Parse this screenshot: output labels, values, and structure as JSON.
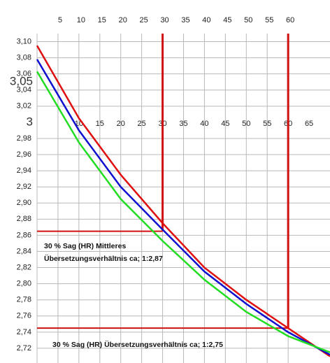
{
  "chart_data": {
    "type": "line",
    "x": [
      0,
      10,
      20,
      30,
      40,
      50,
      60,
      70
    ],
    "series": [
      {
        "color": "#e01010",
        "values": [
          3.095,
          3.005,
          2.935,
          2.875,
          2.82,
          2.78,
          2.745,
          2.71
        ]
      },
      {
        "color": "#1010d0",
        "values": [
          3.078,
          2.99,
          2.92,
          2.867,
          2.815,
          2.775,
          2.74,
          2.712
        ]
      },
      {
        "color": "#22dd22",
        "values": [
          3.063,
          2.975,
          2.905,
          2.853,
          2.805,
          2.765,
          2.735,
          2.715
        ]
      }
    ],
    "xlim": [
      0,
      70
    ],
    "ylim": [
      2.7,
      3.11
    ],
    "xticks": [
      5,
      10,
      15,
      20,
      25,
      30,
      35,
      40,
      45,
      50,
      55,
      60
    ],
    "xticks2": [
      10,
      15,
      20,
      25,
      30,
      35,
      40,
      45,
      50,
      55,
      60,
      65
    ],
    "yticks": [
      {
        "value": 3.1,
        "label": "3,10"
      },
      {
        "value": 3.08,
        "label": "3,08"
      },
      {
        "value": 3.06,
        "label": "3,06"
      },
      {
        "value": 3.05,
        "label": "3,05",
        "large": true
      },
      {
        "value": 3.04,
        "label": "3,04"
      },
      {
        "value": 3.02,
        "label": "3,02"
      },
      {
        "value": 3,
        "label": "3",
        "large": true
      },
      {
        "value": 2.98,
        "label": "2,98"
      },
      {
        "value": 2.96,
        "label": "2,96"
      },
      {
        "value": 2.94,
        "label": "2,94"
      },
      {
        "value": 2.92,
        "label": "2,92"
      },
      {
        "value": 2.9,
        "label": "2,90"
      },
      {
        "value": 2.88,
        "label": "2,88"
      },
      {
        "value": 2.86,
        "label": "2,86"
      },
      {
        "value": 2.84,
        "label": "2,84"
      },
      {
        "value": 2.82,
        "label": "2,82"
      },
      {
        "value": 2.8,
        "label": "2,80"
      },
      {
        "value": 2.78,
        "label": "2,78"
      },
      {
        "value": 2.76,
        "label": "2,76"
      },
      {
        "value": 2.74,
        "label": "2,74"
      },
      {
        "value": 2.72,
        "label": "2,72"
      }
    ],
    "grid": true,
    "reference_lines": [
      {
        "x": 30,
        "y": 2.865,
        "color": "#d01010"
      },
      {
        "x": 60,
        "y": 2.745,
        "color": "#d01010"
      }
    ],
    "annotations": [
      {
        "lines": [
          "30 % Sag (HR) Mittleres",
          "Übersetzungsverhältnis  ca; 1:2,87"
        ]
      },
      {
        "lines": [
          "30 % Sag (HR) Übersetzungsverhältnis  ca; 1:2,75"
        ]
      }
    ]
  }
}
